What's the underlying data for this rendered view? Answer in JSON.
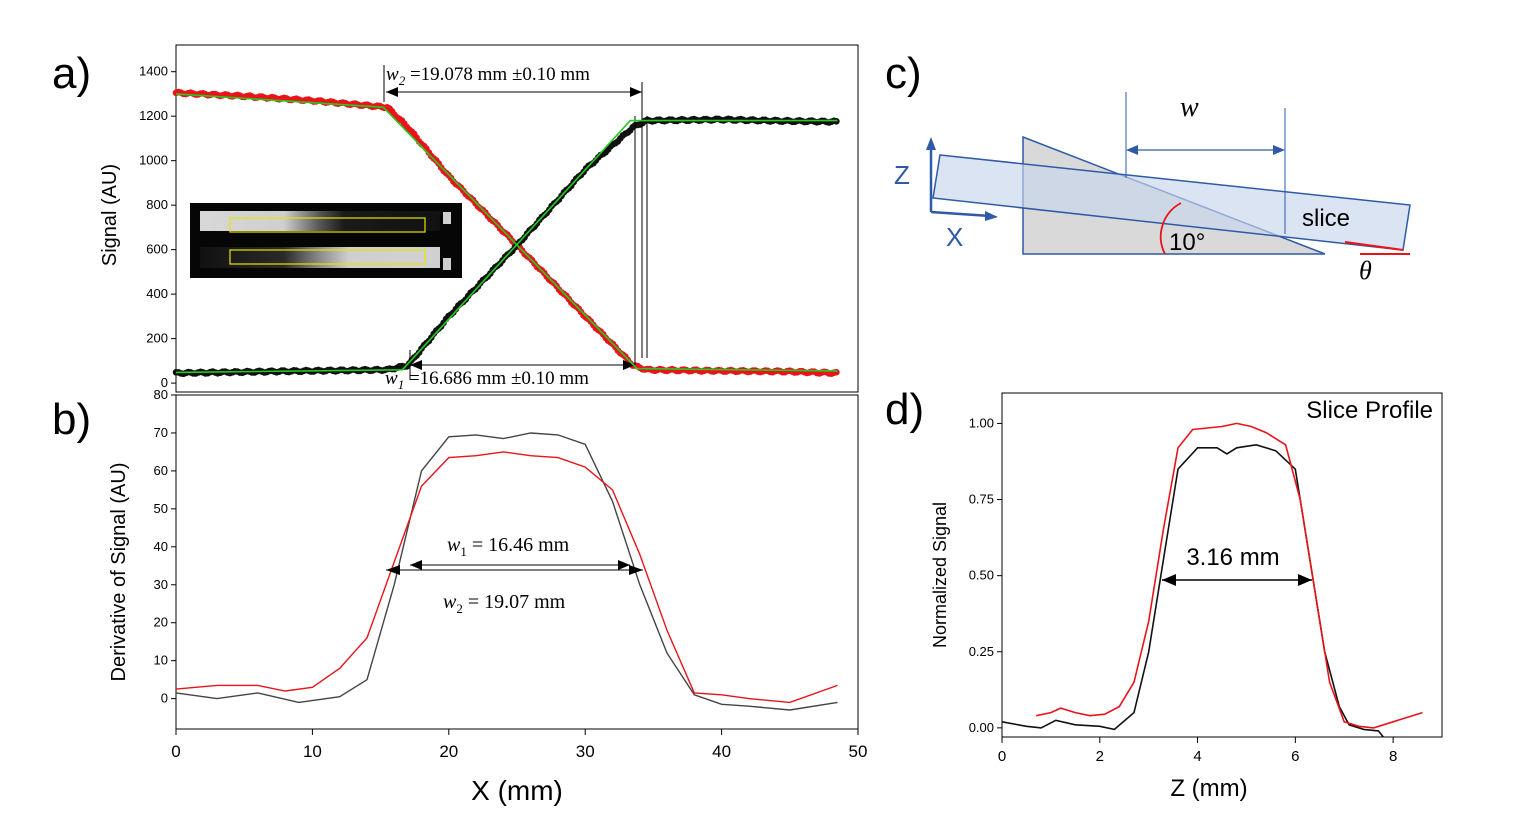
{
  "panel_labels": {
    "a": "a)",
    "b": "b)",
    "c": "c)",
    "d": "d)"
  },
  "colors": {
    "red": "#e8141a",
    "black": "#111111",
    "green": "#22cc22",
    "diagram_blue": "#2e5aa8",
    "fill_blue": "#c7d6ec",
    "fill_gray": "#d9d9d9",
    "axis": "#000000"
  },
  "chart_data": [
    {
      "id": "a",
      "type": "scatter",
      "title": "",
      "xlabel": "",
      "ylabel": "Signal (AU)",
      "xlim": [
        0,
        50
      ],
      "ylim": [
        -40,
        1520
      ],
      "yticks": [
        0,
        200,
        400,
        600,
        800,
        1000,
        1200,
        1400
      ],
      "series": [
        {
          "color": "red",
          "x": [
            0,
            5,
            10,
            15.5,
            17,
            20,
            25,
            30,
            33.5,
            34.5,
            40,
            45,
            48.5
          ],
          "y": [
            1305,
            1290,
            1270,
            1240,
            1150,
            930,
            620,
            300,
            80,
            60,
            55,
            52,
            45
          ]
        },
        {
          "color": "black",
          "x": [
            0,
            5,
            10,
            15.5,
            17,
            20,
            25,
            30,
            33.5,
            34.5,
            40,
            45,
            48.5
          ],
          "y": [
            45,
            50,
            55,
            60,
            80,
            300,
            620,
            960,
            1150,
            1180,
            1185,
            1178,
            1175
          ]
        }
      ],
      "fits": [
        {
          "color": "green",
          "x": [
            0,
            15.2,
            33.8,
            48.5
          ],
          "y": [
            1300,
            1240,
            65,
            55
          ]
        },
        {
          "color": "green",
          "x": [
            0,
            16.6,
            33.3,
            48.5
          ],
          "y": [
            48,
            60,
            1180,
            1180
          ]
        }
      ],
      "annotations": [
        {
          "sym": "w",
          "sub": "2",
          "text": " =19.078 mm ±0.10 mm"
        },
        {
          "sym": "w",
          "sub": "1",
          "text": " =16.686 mm ±0.10 mm"
        }
      ],
      "inset": "MR image of two wedge phantoms with yellow ROI boxes"
    },
    {
      "id": "b",
      "type": "line",
      "title": "",
      "xlabel": "X (mm)",
      "ylabel": "Derivative of Signal (AU)",
      "xlim": [
        0,
        50
      ],
      "ylim": [
        -8,
        80
      ],
      "xticks": [
        0,
        10,
        20,
        30,
        40,
        50
      ],
      "yticks": [
        0,
        10,
        20,
        30,
        40,
        50,
        60,
        70,
        80
      ],
      "series": [
        {
          "color": "black",
          "x": [
            0,
            3,
            6,
            9,
            12,
            14,
            16,
            18,
            20,
            22,
            24,
            26,
            28,
            30,
            32,
            34,
            36,
            38,
            40,
            42,
            45,
            48.5
          ],
          "y": [
            1.5,
            0,
            1.5,
            -1,
            0.5,
            5,
            30,
            60,
            69,
            69.5,
            68.5,
            70,
            69.5,
            67,
            52,
            30,
            12,
            1,
            -1.5,
            -2,
            -3,
            -1
          ]
        },
        {
          "color": "red",
          "x": [
            0,
            3,
            6,
            8,
            10,
            12,
            14,
            16,
            18,
            20,
            22,
            24,
            26,
            28,
            30,
            32,
            34,
            36,
            38,
            40,
            42,
            45,
            48.5
          ],
          "y": [
            2.5,
            3.5,
            3.5,
            2,
            3,
            8,
            16,
            36,
            56,
            63.5,
            64,
            65,
            64,
            63.5,
            61,
            55,
            38,
            18,
            1.5,
            1,
            0,
            -1,
            3.5
          ]
        }
      ],
      "annotations": [
        {
          "sym": "w",
          "sub": "1",
          "text": " = 16.46 mm"
        },
        {
          "sym": "w",
          "sub": "2",
          "text": " = 19.07 mm"
        }
      ]
    },
    {
      "id": "d",
      "type": "line",
      "title": "Slice Profile",
      "xlabel": "Z (mm)",
      "ylabel": "Normalized Signal",
      "xlim": [
        0,
        9
      ],
      "ylim": [
        -0.03,
        1.1
      ],
      "xticks": [
        0,
        2,
        4,
        6,
        8
      ],
      "yticks": [
        0.0,
        0.25,
        0.5,
        0.75,
        1.0
      ],
      "ytick_labels": [
        "0.00",
        "0.25",
        "0.50",
        "0.75",
        "1.00"
      ],
      "series": [
        {
          "color": "black",
          "x": [
            0,
            0.5,
            0.8,
            1.1,
            1.5,
            2.0,
            2.3,
            2.7,
            3.0,
            3.3,
            3.6,
            4.0,
            4.4,
            4.6,
            4.8,
            5.2,
            5.6,
            6.0,
            6.3,
            6.6,
            6.9,
            7.1,
            7.4,
            7.7,
            7.8
          ],
          "y": [
            0.02,
            0.005,
            0.0,
            0.025,
            0.01,
            0.005,
            -0.005,
            0.05,
            0.25,
            0.55,
            0.85,
            0.92,
            0.92,
            0.9,
            0.92,
            0.93,
            0.91,
            0.85,
            0.55,
            0.25,
            0.07,
            0.01,
            -0.005,
            -0.01,
            -0.03
          ]
        },
        {
          "color": "red",
          "x": [
            0.7,
            1.0,
            1.2,
            1.5,
            1.8,
            2.1,
            2.4,
            2.7,
            3.0,
            3.3,
            3.6,
            3.9,
            4.2,
            4.5,
            4.8,
            5.1,
            5.4,
            5.8,
            6.1,
            6.4,
            6.7,
            7.0,
            7.3,
            7.6,
            8.0,
            8.6
          ],
          "y": [
            0.04,
            0.05,
            0.065,
            0.05,
            0.04,
            0.045,
            0.07,
            0.15,
            0.35,
            0.65,
            0.92,
            0.98,
            0.985,
            0.99,
            1.0,
            0.99,
            0.97,
            0.93,
            0.75,
            0.45,
            0.15,
            0.02,
            0.005,
            0.0,
            0.02,
            0.05
          ]
        }
      ],
      "annotations": [
        {
          "text": "3.16 mm"
        }
      ]
    }
  ],
  "diagram_c": {
    "axis_z": "Z",
    "axis_x": "X",
    "w_label": "w",
    "slice_label": "slice",
    "angle_label": "10°",
    "theta_label": "θ"
  }
}
